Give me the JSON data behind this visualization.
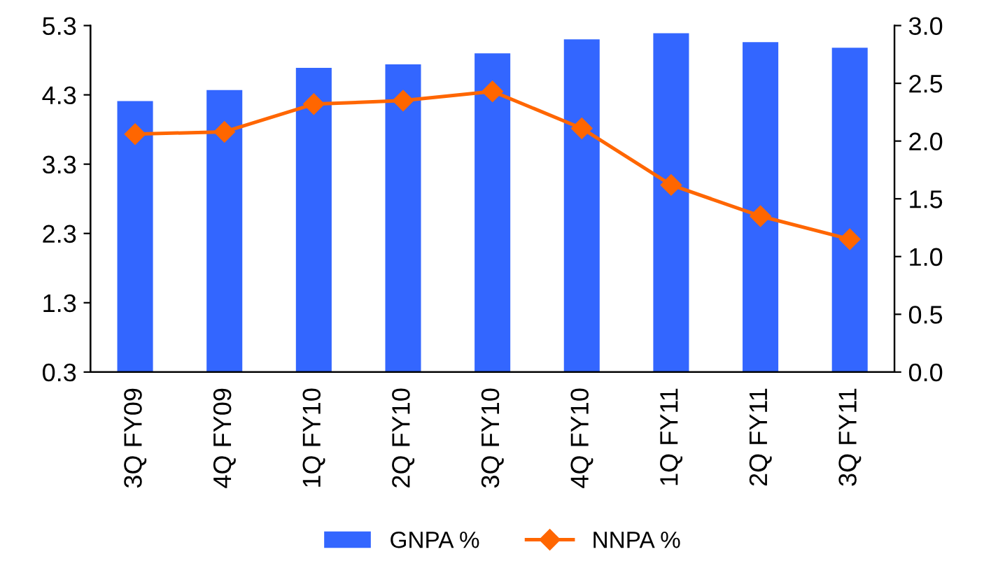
{
  "chart_data": {
    "type": "bar",
    "categories": [
      "3Q FY09",
      "4Q FY09",
      "1Q FY10",
      "2Q FY10",
      "3Q FY10",
      "4Q FY10",
      "1Q FY11",
      "2Q FY11",
      "3Q FY11"
    ],
    "series": [
      {
        "name": "GNPA %",
        "color": "#3366ff",
        "values": [
          4.21,
          4.37,
          4.69,
          4.74,
          4.9,
          5.1,
          5.19,
          5.06,
          4.98
        ]
      },
      {
        "name": "NNPA %",
        "type": "line",
        "axis": "y2",
        "color": "#ff6600",
        "marker": "diamond",
        "values": [
          2.06,
          2.08,
          2.32,
          2.35,
          2.43,
          2.11,
          1.62,
          1.35,
          1.15
        ]
      }
    ],
    "ylim": [
      0.3,
      5.3
    ],
    "yticks": [
      0.3,
      1.3,
      2.3,
      3.3,
      4.3,
      5.3
    ],
    "y2lim": [
      0.0,
      3.0
    ],
    "y2ticks": [
      {
        "value": 0,
        "label": "0.0"
      },
      {
        "value": 0.5,
        "label": "0.5"
      },
      {
        "value": 1,
        "label": "1.0"
      },
      {
        "value": 1.5,
        "label": "1.5"
      },
      {
        "value": 2,
        "label": "2.0"
      },
      {
        "value": 2.5,
        "label": "2.5"
      },
      {
        "value": 3,
        "label": "3.0"
      }
    ],
    "legend": "bottom"
  }
}
